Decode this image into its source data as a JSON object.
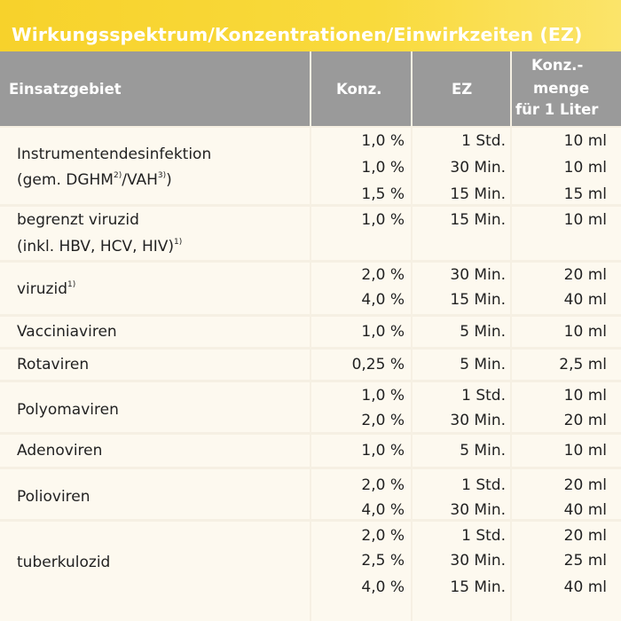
{
  "title": "Wirkungsspektrum/Konzentrationen/Einwirkzeiten (EZ)",
  "headers": {
    "area": "Einsatzgebiet",
    "conc": "Konz.",
    "ez": "EZ",
    "amount_line1": "Konz.-",
    "amount_line2": "menge",
    "amount_line3": "für 1 Liter"
  },
  "rows": [
    {
      "label_lines": [
        [
          "Instrumentendesinfektion",
          ""
        ],
        [
          "(gem. DGHM",
          "2)",
          "/VAH",
          "3)",
          ")"
        ]
      ],
      "values": [
        [
          "1,0 %",
          "1 Std.",
          "10 ml"
        ],
        [
          "1,0 %",
          "30 Min.",
          "10 ml"
        ],
        [
          "1,5 %",
          "15 Min.",
          "15 ml"
        ]
      ]
    },
    {
      "label_lines": [
        [
          "begrenzt viruzid"
        ],
        [
          "(inkl. HBV, HCV, HIV)",
          "1)"
        ]
      ],
      "values": [
        [
          "1,0 %",
          "15 Min.",
          "10 ml"
        ]
      ]
    },
    {
      "label_lines": [
        [
          "viruzid",
          "1)"
        ]
      ],
      "values": [
        [
          "2,0 %",
          "30 Min.",
          "20 ml"
        ],
        [
          "4,0 %",
          "15 Min.",
          "40 ml"
        ]
      ]
    },
    {
      "label_lines": [
        [
          "Vacciniaviren"
        ]
      ],
      "values": [
        [
          "1,0 %",
          "5 Min.",
          "10 ml"
        ]
      ]
    },
    {
      "label_lines": [
        [
          "Rotaviren"
        ]
      ],
      "values": [
        [
          "0,25 %",
          "5 Min.",
          "2,5 ml"
        ]
      ]
    },
    {
      "label_lines": [
        [
          "Polyomaviren"
        ]
      ],
      "values": [
        [
          "1,0 %",
          "1 Std.",
          "10 ml"
        ],
        [
          "2,0 %",
          "30 Min.",
          "20 ml"
        ]
      ]
    },
    {
      "label_lines": [
        [
          "Adenoviren"
        ]
      ],
      "values": [
        [
          "1,0 %",
          "5 Min.",
          "10 ml"
        ]
      ]
    },
    {
      "label_lines": [
        [
          "Polioviren"
        ]
      ],
      "values": [
        [
          "2,0 %",
          "1 Std.",
          "20 ml"
        ],
        [
          "4,0 %",
          "30 Min.",
          "40 ml"
        ]
      ]
    },
    {
      "label_lines": [
        [
          "tuberkulozid"
        ]
      ],
      "values": [
        [
          "2,0 %",
          "1 Std.",
          "20 ml"
        ],
        [
          "2,5 %",
          "30 Min.",
          "25 ml"
        ],
        [
          "4,0 %",
          "15 Min.",
          "40 ml"
        ]
      ]
    }
  ]
}
